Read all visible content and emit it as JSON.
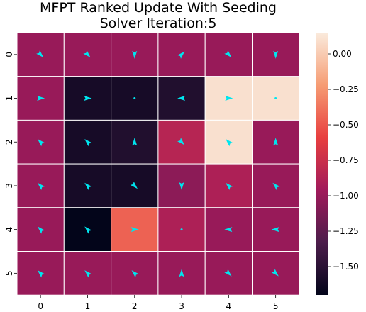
{
  "chart_data": {
    "type": "heatmap",
    "title": [
      "MFPT Ranked Update With Seeding",
      "Solver Iteration:5"
    ],
    "x_categories": [
      "0",
      "1",
      "2",
      "3",
      "4",
      "5"
    ],
    "y_categories": [
      "0",
      "1",
      "2",
      "3",
      "4",
      "5"
    ],
    "values": [
      [
        -1.0,
        -1.0,
        -1.0,
        -1.0,
        -1.0,
        -1.0
      ],
      [
        -1.0,
        -1.6,
        -1.6,
        -1.55,
        0.1,
        0.1
      ],
      [
        -1.0,
        -1.6,
        -1.55,
        -0.85,
        0.1,
        -1.0
      ],
      [
        -1.0,
        -1.6,
        -1.6,
        -1.05,
        -0.9,
        -1.0
      ],
      [
        -1.0,
        -1.7,
        -0.45,
        -0.9,
        -1.0,
        -1.0
      ],
      [
        -1.0,
        -1.0,
        -1.0,
        -1.0,
        -1.0,
        -1.0
      ]
    ],
    "arrows": [
      [
        "down-right",
        "down-right",
        "down",
        "up-right",
        "down-right",
        "down"
      ],
      [
        "right",
        "right",
        "none",
        "left",
        "right",
        "none"
      ],
      [
        "up-left",
        "up-left",
        "up",
        "down-right",
        "up-left",
        "up"
      ],
      [
        "up-left",
        "up-left",
        "down-right",
        "down",
        "up-left",
        "up-left"
      ],
      [
        "up-left",
        "up-left",
        "right",
        "none",
        "left",
        "left"
      ],
      [
        "up-left",
        "up-left",
        "up-left",
        "up",
        "down-right",
        "down-right"
      ]
    ],
    "colorbar": {
      "range": [
        -1.7,
        0.15
      ],
      "ticks": [
        0.0,
        -0.25,
        -0.5,
        -0.75,
        -1.0,
        -1.25,
        -1.5
      ],
      "tick_labels": [
        "0.00",
        "−0.25",
        "−0.50",
        "−0.75",
        "−1.00",
        "−1.25",
        "−1.50"
      ]
    },
    "arrow_color": "#00e5ee",
    "grid": true
  }
}
